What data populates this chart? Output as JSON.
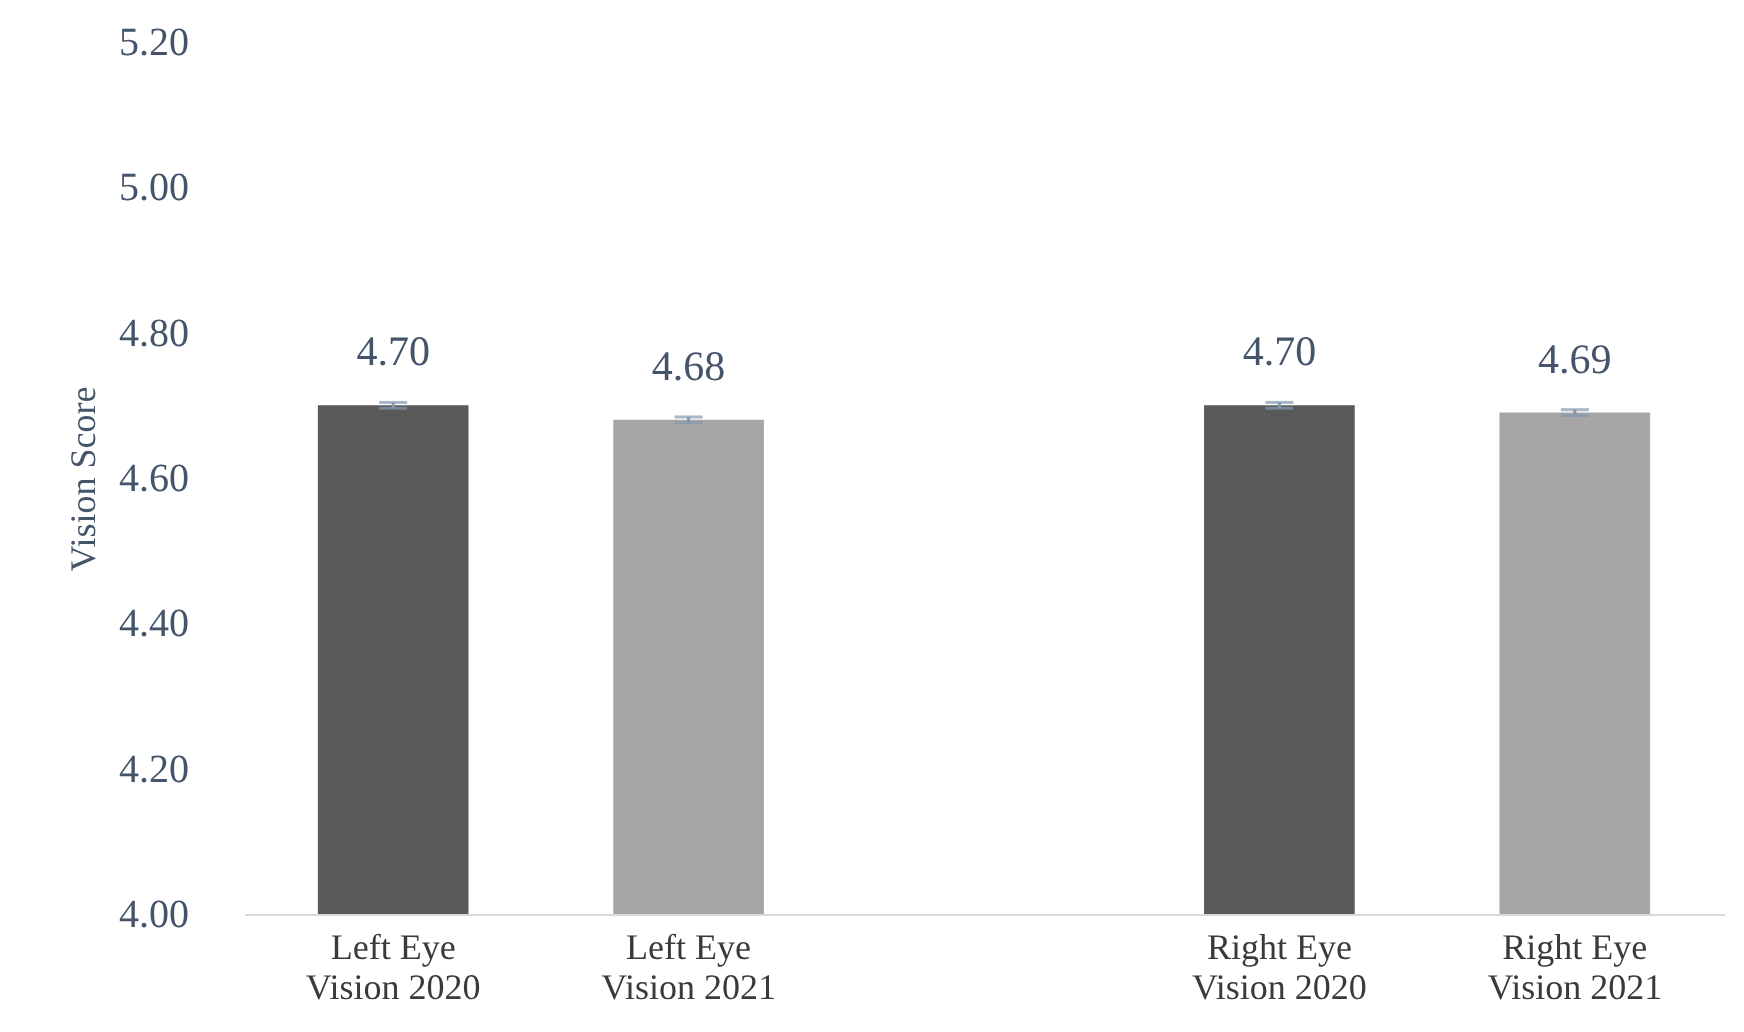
{
  "chart_data": {
    "type": "bar",
    "ylabel": "Vision Score",
    "categories": [
      "Left Eye Vision 2020",
      "Left Eye Vision 2021",
      null,
      "Right Eye Vision 2020",
      "Right Eye Vision 2021"
    ],
    "values": [
      4.7,
      4.68,
      null,
      4.7,
      4.69
    ],
    "colors": [
      "#595959",
      "#a6a6a6",
      "#a6a6a6",
      "#595959",
      "#a6a6a6"
    ],
    "errors": [
      0.004,
      0.004,
      null,
      0.004,
      0.004
    ],
    "value_labels": [
      "4.70",
      "4.68",
      null,
      "4.70",
      "4.69"
    ],
    "ylim": [
      4.0,
      5.2
    ],
    "yticks": [
      {
        "value": 4.0,
        "label": "4.00"
      },
      {
        "value": 4.2,
        "label": "4.20"
      },
      {
        "value": 4.4,
        "label": "4.40"
      },
      {
        "value": 4.6,
        "label": "4.60"
      },
      {
        "value": 4.8,
        "label": "4.80"
      },
      {
        "value": 5.0,
        "label": "5.00"
      },
      {
        "value": 5.2,
        "label": "5.20"
      }
    ],
    "grid": false
  }
}
